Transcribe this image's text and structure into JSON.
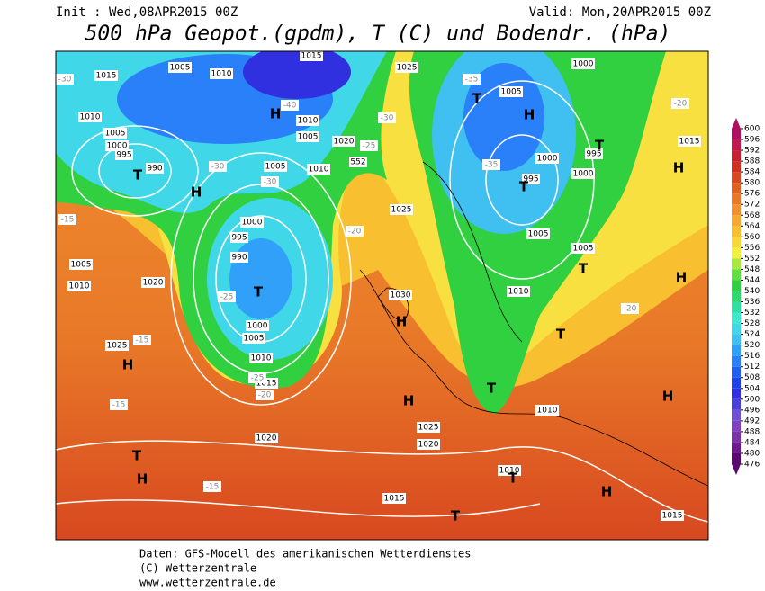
{
  "header": {
    "init": "Init : Wed,08APR2015 00Z",
    "valid": "Valid: Mon,20APR2015 00Z",
    "title": "500 hPa Geopot.(gpdm), T (C) und Bodendr. (hPa)"
  },
  "colorbar": {
    "ticks": [
      476,
      480,
      484,
      488,
      492,
      496,
      500,
      504,
      508,
      512,
      516,
      520,
      524,
      528,
      532,
      536,
      540,
      544,
      548,
      552,
      556,
      560,
      564,
      568,
      572,
      576,
      580,
      584,
      588,
      592,
      596,
      600
    ],
    "colors": [
      "#5a0a6e",
      "#6e1a8c",
      "#7a32a8",
      "#8040c0",
      "#7050d0",
      "#4a40d8",
      "#3030e0",
      "#2040e8",
      "#2060f0",
      "#2a80f8",
      "#30a0f8",
      "#40c0f0",
      "#40d8e8",
      "#40e8d0",
      "#30e0a0",
      "#30d870",
      "#30d040",
      "#60e040",
      "#a8e840",
      "#f0f040",
      "#f8d838",
      "#f8c030",
      "#f8a830",
      "#f09030",
      "#e87828",
      "#e06020",
      "#d84820",
      "#d03020",
      "#c82030",
      "#c01850",
      "#b01060"
    ]
  },
  "map_labels": [
    "1015",
    "1005",
    "1010",
    "1015",
    "1025",
    "1000",
    "1010",
    "1005",
    "1000",
    "995",
    "990",
    "T",
    "H",
    "H",
    "1010",
    "1005",
    "1020",
    "1010",
    "552",
    "1005",
    "1000",
    "995",
    "990",
    "T",
    "1000",
    "1005",
    "1010",
    "1015",
    "1020",
    "1025",
    "H",
    "T",
    "H",
    "1005",
    "1010",
    "1020",
    "1025",
    "1030",
    "H",
    "H",
    "1025",
    "1020",
    "1010",
    "T",
    "1015",
    "T",
    "1010",
    "T",
    "1010",
    "H",
    "1015",
    "H",
    "T",
    "H",
    "1005",
    "T",
    "1015",
    "H",
    "995",
    "T",
    "1000",
    "1000",
    "995",
    "T",
    "1005",
    "T",
    "H",
    "1005",
    "-35",
    "-30",
    "-30",
    "-20",
    "-15",
    "-15",
    "-15",
    "-15",
    "-20",
    "-20",
    "-20",
    "-25",
    "-25",
    "-30",
    "-30",
    "-35",
    "-25",
    "-40"
  ],
  "footer": [
    "Daten: GFS-Modell des amerikanischen Wetterdienstes",
    "(C) Wetterzentrale",
    "www.wetterzentrale.de"
  ]
}
